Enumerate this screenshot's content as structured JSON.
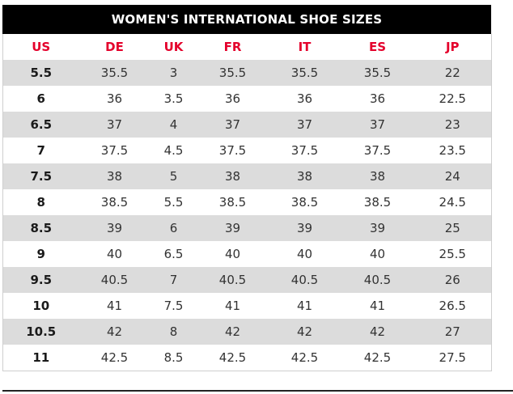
{
  "title": "WOMEN'S INTERNATIONAL SHOE SIZES",
  "headers": [
    "US",
    "DE",
    "UK",
    "FR",
    "IT",
    "ES",
    "JP"
  ],
  "rows": [
    [
      "5.5",
      "35.5",
      "3",
      "35.5",
      "35.5",
      "35.5",
      "22"
    ],
    [
      "6",
      "36",
      "3.5",
      "36",
      "36",
      "36",
      "22.5"
    ],
    [
      "6.5",
      "37",
      "4",
      "37",
      "37",
      "37",
      "23"
    ],
    [
      "7",
      "37.5",
      "4.5",
      "37.5",
      "37.5",
      "37.5",
      "23.5"
    ],
    [
      "7.5",
      "38",
      "5",
      "38",
      "38",
      "38",
      "24"
    ],
    [
      "8",
      "38.5",
      "5.5",
      "38.5",
      "38.5",
      "38.5",
      "24.5"
    ],
    [
      "8.5",
      "39",
      "6",
      "39",
      "39",
      "39",
      "25"
    ],
    [
      "9",
      "40",
      "6.5",
      "40",
      "40",
      "40",
      "25.5"
    ],
    [
      "9.5",
      "40.5",
      "7",
      "40.5",
      "40.5",
      "40.5",
      "26"
    ],
    [
      "10",
      "41",
      "7.5",
      "41",
      "41",
      "41",
      "26.5"
    ],
    [
      "10.5",
      "42",
      "8",
      "42",
      "42",
      "42",
      "27"
    ],
    [
      "11",
      "42.5",
      "8.5",
      "42.5",
      "42.5",
      "42.5",
      "27.5"
    ]
  ],
  "colors": {
    "header_text": "#e4002b",
    "title_bg": "#000000",
    "stripe": "#dcdcdc"
  }
}
